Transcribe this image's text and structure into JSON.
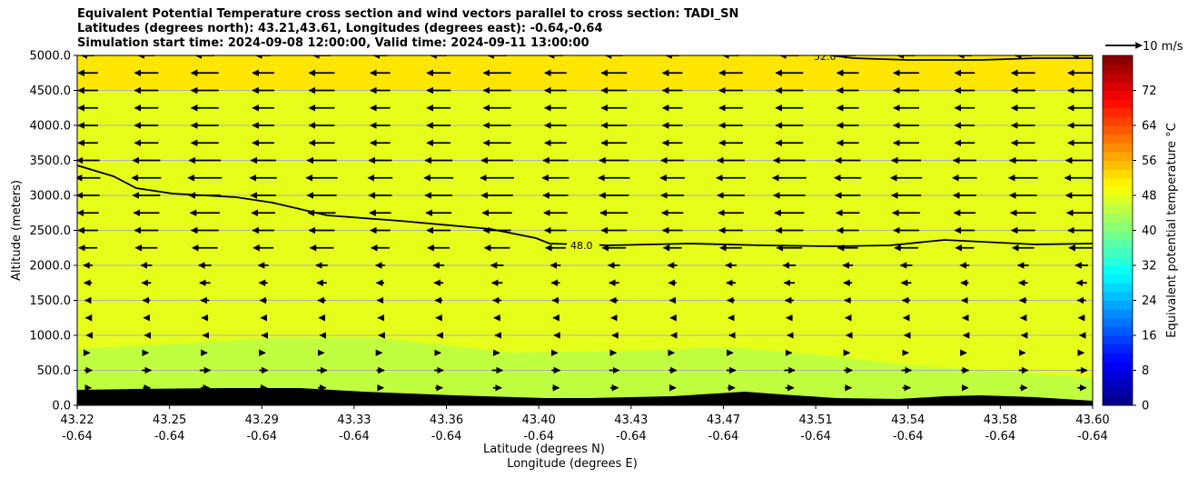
{
  "title_lines": [
    "Equivalent Potential Temperature cross section and wind vectors parallel to cross section: TADI_SN",
    "Latitudes (degrees north): 43.21,43.61, Longitudes (degrees east): -0.64,-0.64",
    "Simulation start time: 2024-09-08 12:00:00, Valid time: 2024-09-11 13:00:00"
  ],
  "chart_data": {
    "type": "heatmap",
    "subtype": "filled-contour cross section with wind vector field",
    "ylabel": "Altitude (meters)",
    "xlabel_line1": "Latitude (degrees N)",
    "xlabel_line2": "Longitude (degrees E)",
    "ylim": [
      0,
      5000
    ],
    "y_ticks": [
      0,
      500,
      1000,
      1500,
      2000,
      2500,
      3000,
      3500,
      4000,
      4500,
      5000
    ],
    "y_tick_labels": [
      "0.0",
      "500.0",
      "1000.0",
      "1500.0",
      "2000.0",
      "2500.0",
      "3000.0",
      "3500.0",
      "4000.0",
      "4500.0",
      "5000.0"
    ],
    "x_tick_latitudes": [
      "43.22",
      "43.25",
      "43.29",
      "43.33",
      "43.36",
      "43.40",
      "43.43",
      "43.47",
      "43.51",
      "43.54",
      "43.58",
      "43.60"
    ],
    "x_tick_longitudes": [
      "-0.64",
      "-0.64",
      "-0.64",
      "-0.64",
      "-0.64",
      "-0.64",
      "-0.64",
      "-0.64",
      "-0.64",
      "-0.64",
      "-0.64",
      "-0.64"
    ],
    "grid": "horizontal",
    "colorbar": {
      "label": "Equivalent potential temperature $^\\circ$C",
      "range": [
        0,
        80
      ],
      "ticks": [
        0,
        8,
        16,
        24,
        32,
        40,
        48,
        56,
        64,
        72
      ],
      "levels": 40,
      "colormap": "jet"
    },
    "contours": [
      {
        "level": 48,
        "label": "48.0"
      },
      {
        "level": 52,
        "label": "52.0"
      }
    ],
    "fill_colors": {
      "above_52": "#ffe600",
      "between_44_48": "#e6ff1a",
      "low_layer": "#bfff3f",
      "terrain": "#000000"
    },
    "wind_reference": {
      "label": "10 m/s",
      "speed": 10
    },
    "wind_rows": [
      {
        "altitude": 5000,
        "u": -4.5
      },
      {
        "altitude": 4750,
        "u": -6.5
      },
      {
        "altitude": 4500,
        "u": -6.5
      },
      {
        "altitude": 4250,
        "u": -6.5
      },
      {
        "altitude": 4000,
        "u": -6.5
      },
      {
        "altitude": 3750,
        "u": -6.5
      },
      {
        "altitude": 3500,
        "u": -7.5
      },
      {
        "altitude": 3250,
        "u": -8.0
      },
      {
        "altitude": 3000,
        "u": -7.5
      },
      {
        "altitude": 2750,
        "u": -7.0
      },
      {
        "altitude": 2500,
        "u": -6.5
      },
      {
        "altitude": 2250,
        "u": -6.0
      },
      {
        "altitude": 2000,
        "u": -3.0
      },
      {
        "altitude": 1750,
        "u": -2.5
      },
      {
        "altitude": 1500,
        "u": -2.0
      },
      {
        "altitude": 1250,
        "u": -1.5
      },
      {
        "altitude": 1000,
        "u": -1.0
      },
      {
        "altitude": 750,
        "u": 1.0
      },
      {
        "altitude": 500,
        "u": 2.5
      },
      {
        "altitude": 250,
        "u": 2.0
      }
    ]
  }
}
